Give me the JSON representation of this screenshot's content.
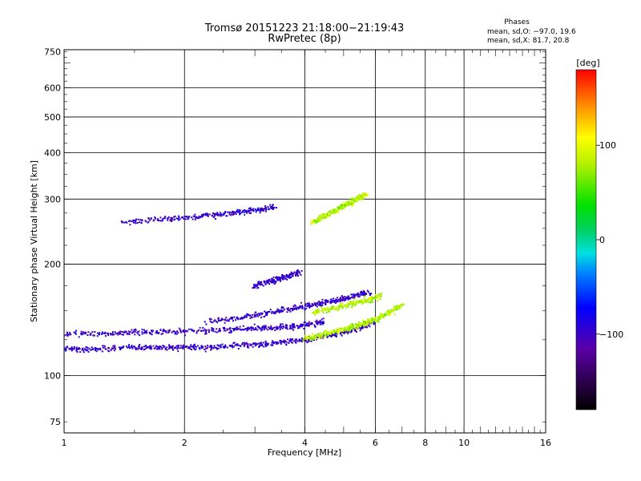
{
  "chart_data": {
    "type": "scatter",
    "title": "Tromsø 20151223 21:18:00−21:19:43",
    "subtitle": "RwPretec (8p)",
    "xlabel": "Frequency [MHz]",
    "ylabel": "Stationary phase Virtual Height [km]",
    "x_scale": "log",
    "y_scale": "log",
    "xlim": [
      1,
      16
    ],
    "ylim": [
      70,
      760
    ],
    "x_ticks": [
      1,
      2,
      4,
      6,
      8,
      10,
      16
    ],
    "x_tick_labels": [
      "1",
      "2",
      "4",
      "6",
      "8",
      "10",
      "16"
    ],
    "x_grid": [
      2,
      4,
      6,
      8,
      10
    ],
    "y_ticks": [
      75,
      100,
      200,
      300,
      400,
      500,
      600,
      750
    ],
    "y_tick_labels": [
      "75",
      "100",
      "200",
      "300",
      "400",
      "500",
      "600",
      "750"
    ],
    "y_grid": [
      100,
      200,
      300,
      400,
      500,
      600
    ],
    "grid": true,
    "stats": {
      "header": "Phases",
      "line1": "mean, sd,O: −97.0, 19.6",
      "line2": "mean, sd,X:  81.7, 20.8"
    },
    "colorbar": {
      "label": "[deg]",
      "min": -180,
      "max": 180,
      "ticks": [
        100,
        0,
        -100
      ],
      "tick_labels": [
        "100",
        "0",
        "−100"
      ]
    },
    "series": [
      {
        "mode": "O",
        "phase_mean": -97.0,
        "phase_sd": 19.6,
        "traces": [
          {
            "x": [
              1.0,
              1.2,
              1.5,
              1.8,
              2.1,
              2.5,
              3.0,
              3.5,
              4.0,
              4.5,
              5.0,
              5.5,
              6.0
            ],
            "y": [
              118,
              118,
              119,
              119,
              119,
              120,
              121,
              123,
              125,
              128,
              131,
              135,
              140
            ]
          },
          {
            "x": [
              1.0,
              1.3,
              1.6,
              2.0,
              2.5,
              3.0,
              3.5,
              4.0,
              4.5
            ],
            "y": [
              130,
              130,
              131,
              132,
              133,
              134,
              135,
              137,
              140
            ]
          },
          {
            "x": [
              2.3,
              2.8,
              3.3,
              3.8,
              4.3,
              4.8,
              5.3,
              5.8
            ],
            "y": [
              140,
              144,
              148,
              152,
              156,
              160,
              164,
              168
            ]
          },
          {
            "x": [
              3.0,
              3.3,
              3.6,
              3.9
            ],
            "y": [
              175,
              180,
              185,
              190
            ]
          },
          {
            "x": [
              1.4,
              1.8,
              2.2,
              2.6,
              3.0,
              3.4
            ],
            "y": [
              260,
              265,
              270,
              275,
              280,
              285
            ]
          }
        ]
      },
      {
        "mode": "X",
        "phase_mean": 81.7,
        "phase_sd": 20.8,
        "traces": [
          {
            "x": [
              4.0,
              4.4,
              4.8,
              5.2,
              5.6,
              6.0,
              6.5,
              7.0
            ],
            "y": [
              126,
              129,
              132,
              135,
              138,
              142,
              148,
              155
            ]
          },
          {
            "x": [
              4.2,
              4.7,
              5.2,
              5.7,
              6.2
            ],
            "y": [
              148,
              152,
              156,
              160,
              164
            ]
          },
          {
            "x": [
              4.2,
              4.5,
              4.8,
              5.1,
              5.4,
              5.7
            ],
            "y": [
              260,
              270,
              280,
              290,
              300,
              310
            ]
          }
        ]
      }
    ]
  }
}
